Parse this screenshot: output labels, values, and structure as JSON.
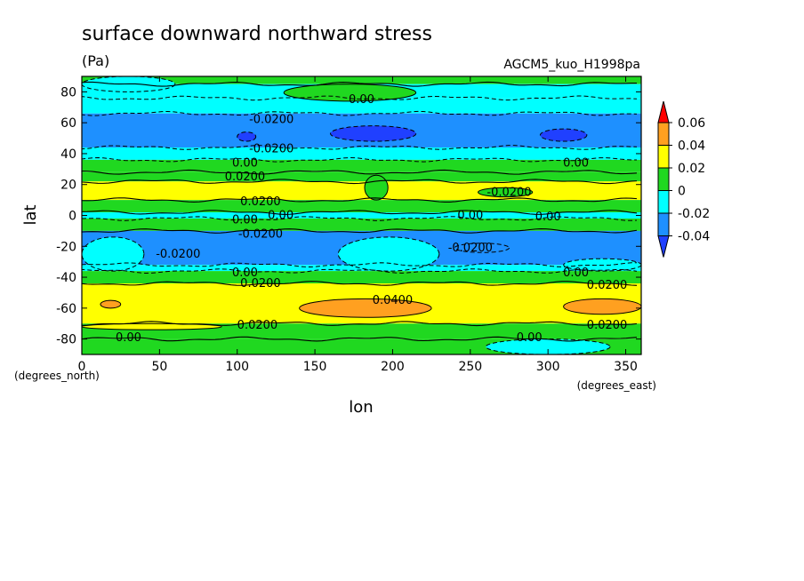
{
  "chart_data": {
    "type": "heatmap",
    "title": "surface downward northward stress",
    "units": "(Pa)",
    "run_label": "AGCM5_kuo_H1998pa",
    "xlabel": "lon",
    "ylabel": "lat",
    "x_unit_note": "(degrees_east)",
    "y_unit_note": "(degrees_north)",
    "xlim": [
      0,
      360
    ],
    "ylim": [
      -90,
      90
    ],
    "x_ticks": [
      0,
      50,
      100,
      150,
      200,
      250,
      300,
      350
    ],
    "y_ticks": [
      80,
      60,
      40,
      20,
      0,
      -20,
      -40,
      -60,
      -80
    ],
    "colorbar": {
      "levels": [
        "0.06",
        "0.04",
        "0.02",
        "0",
        "-0.02",
        "-0.04"
      ],
      "level_values": [
        0.06,
        0.04,
        0.02,
        0,
        -0.02,
        -0.04
      ],
      "colors": [
        "#ff0000",
        "#ffa020",
        "#ffff00",
        "#20d820",
        "#00ffff",
        "#1e90ff",
        "#2040ff"
      ]
    },
    "bands": [
      {
        "lat_from": 85,
        "lat_to": 90,
        "value": 0.01
      },
      {
        "lat_from": 76,
        "lat_to": 85,
        "value": -0.01
      },
      {
        "lat_from": 66,
        "lat_to": 76,
        "value": -0.01
      },
      {
        "lat_from": 44,
        "lat_to": 66,
        "value": -0.03
      },
      {
        "lat_from": 36,
        "lat_to": 44,
        "value": -0.01
      },
      {
        "lat_from": 28,
        "lat_to": 36,
        "value": 0.01
      },
      {
        "lat_from": 22,
        "lat_to": 28,
        "value": 0.01
      },
      {
        "lat_from": 10,
        "lat_to": 22,
        "value": 0.03
      },
      {
        "lat_from": 2,
        "lat_to": 10,
        "value": 0.01
      },
      {
        "lat_from": -2,
        "lat_to": 2,
        "value": -0.01
      },
      {
        "lat_from": -10,
        "lat_to": -2,
        "value": 0.01
      },
      {
        "lat_from": -32,
        "lat_to": -10,
        "value": -0.03
      },
      {
        "lat_from": -36,
        "lat_to": -32,
        "value": -0.01
      },
      {
        "lat_from": -44,
        "lat_to": -36,
        "value": 0.01
      },
      {
        "lat_from": -70,
        "lat_to": -44,
        "value": 0.03
      },
      {
        "lat_from": -80,
        "lat_to": -70,
        "value": 0.01
      },
      {
        "lat_from": -90,
        "lat_to": -80,
        "value": 0.01
      }
    ],
    "patches": [
      {
        "lon_from": 100,
        "lon_to": 112,
        "lat_from": 48,
        "lat_to": 54,
        "value": -0.05
      },
      {
        "lon_from": 160,
        "lon_to": 215,
        "lat_from": 48,
        "lat_to": 58,
        "value": -0.05
      },
      {
        "lon_from": 295,
        "lon_to": 325,
        "lat_from": 48,
        "lat_to": 56,
        "value": -0.05
      },
      {
        "lon_from": 130,
        "lon_to": 215,
        "lat_from": 74,
        "lat_to": 85,
        "value": 0.01
      },
      {
        "lon_from": 0,
        "lon_to": 60,
        "lat_from": 80,
        "lat_to": 90,
        "value": -0.01
      },
      {
        "lon_from": 182,
        "lon_to": 197,
        "lat_from": 10,
        "lat_to": 26,
        "value": 0.01
      },
      {
        "lon_from": 255,
        "lon_to": 290,
        "lat_from": 12,
        "lat_to": 18,
        "value": 0.01
      },
      {
        "lon_from": 0,
        "lon_to": 40,
        "lat_from": -36,
        "lat_to": -14,
        "value": -0.01
      },
      {
        "lon_from": 165,
        "lon_to": 230,
        "lat_from": -36,
        "lat_to": -14,
        "value": -0.01
      },
      {
        "lon_from": 240,
        "lon_to": 275,
        "lat_from": -24,
        "lat_to": -18,
        "value": -0.03
      },
      {
        "lon_from": 310,
        "lon_to": 360,
        "lat_from": -36,
        "lat_to": -28,
        "value": -0.01
      },
      {
        "lon_from": 140,
        "lon_to": 225,
        "lat_from": -66,
        "lat_to": -54,
        "value": 0.05
      },
      {
        "lon_from": 310,
        "lon_to": 360,
        "lat_from": -64,
        "lat_to": -54,
        "value": 0.05
      },
      {
        "lon_from": 12,
        "lon_to": 25,
        "lat_from": -60,
        "lat_to": -55,
        "value": 0.05
      },
      {
        "lon_from": 0,
        "lon_to": 90,
        "lat_from": -74,
        "lat_to": -70,
        "value": 0.03
      },
      {
        "lon_from": 260,
        "lon_to": 340,
        "lat_from": -90,
        "lat_to": -80,
        "value": -0.01
      }
    ],
    "annotations": [
      {
        "text": "0.00",
        "lon": 180,
        "lat": 75
      },
      {
        "text": "-0.0200",
        "lon": 122,
        "lat": 62
      },
      {
        "text": "-0.0200",
        "lon": 122,
        "lat": 43
      },
      {
        "text": "0.00",
        "lon": 105,
        "lat": 34
      },
      {
        "text": "0.0200",
        "lon": 105,
        "lat": 25
      },
      {
        "text": "0.00",
        "lon": 318,
        "lat": 34
      },
      {
        "text": "-0.0200",
        "lon": 275,
        "lat": 15
      },
      {
        "text": "0.0200",
        "lon": 115,
        "lat": 9
      },
      {
        "text": "0.00",
        "lon": 105,
        "lat": -3
      },
      {
        "text": "0.00",
        "lon": 128,
        "lat": 0
      },
      {
        "text": "-0.0200",
        "lon": 115,
        "lat": -12
      },
      {
        "text": "0.00",
        "lon": 250,
        "lat": 0
      },
      {
        "text": "0.00",
        "lon": 300,
        "lat": -1
      },
      {
        "text": "-0.0200",
        "lon": 62,
        "lat": -25
      },
      {
        "text": "-0.0200",
        "lon": 250,
        "lat": -21
      },
      {
        "text": "0.00",
        "lon": 105,
        "lat": -37
      },
      {
        "text": "0.0200",
        "lon": 115,
        "lat": -44
      },
      {
        "text": "0.00",
        "lon": 318,
        "lat": -37
      },
      {
        "text": "0.0200",
        "lon": 338,
        "lat": -45
      },
      {
        "text": "0.0400",
        "lon": 200,
        "lat": -55
      },
      {
        "text": "0.0200",
        "lon": 113,
        "lat": -71
      },
      {
        "text": "0.0200",
        "lon": 338,
        "lat": -71
      },
      {
        "text": "0.00",
        "lon": 30,
        "lat": -79
      },
      {
        "text": "0.00",
        "lon": 288,
        "lat": -79
      }
    ]
  }
}
